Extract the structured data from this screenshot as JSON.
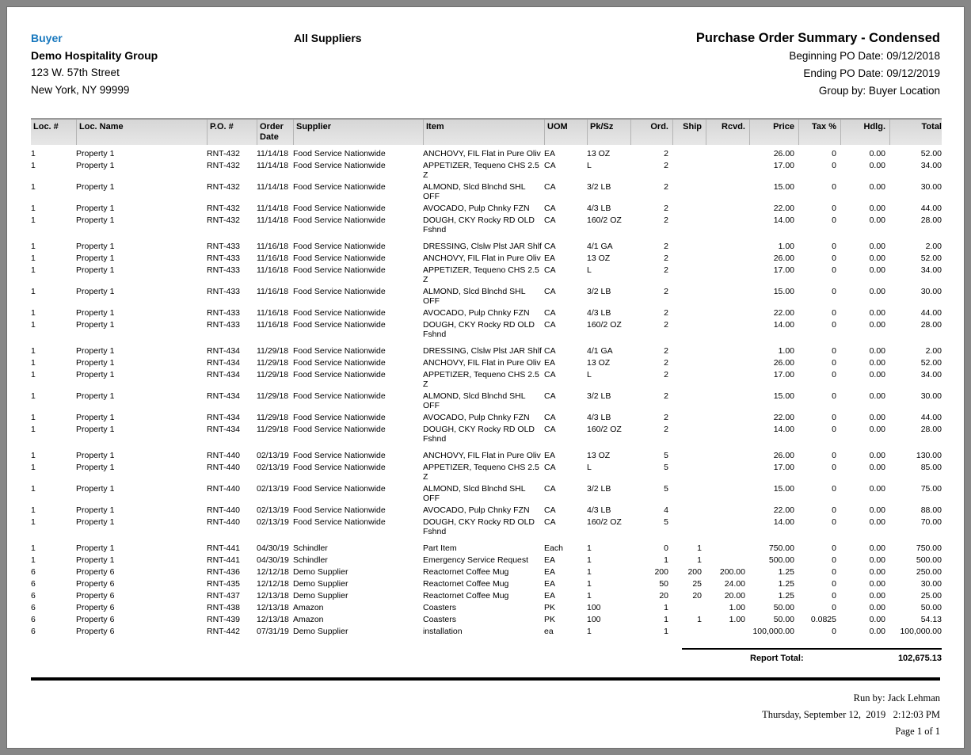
{
  "header": {
    "buyer_label": "Buyer",
    "buyer_name": "Demo Hospitality Group",
    "buyer_address1": "123 W. 57th Street",
    "buyer_address2": "New York, NY 99999",
    "supplier_filter": "All Suppliers",
    "report_title": "Purchase Order Summary - Condensed",
    "beginning_po_date": "Beginning PO Date: 09/12/2018",
    "ending_po_date": "Ending PO Date: 09/12/2019",
    "group_by": "Group by: Buyer Location"
  },
  "table": {
    "columns": [
      {
        "key": "loc_num",
        "label": "Loc. #"
      },
      {
        "key": "loc_name",
        "label": "Loc. Name"
      },
      {
        "key": "po_num",
        "label": "P.O. #"
      },
      {
        "key": "order_date",
        "label": "Order Date"
      },
      {
        "key": "supplier",
        "label": "Supplier"
      },
      {
        "key": "item",
        "label": "Item"
      },
      {
        "key": "uom",
        "label": "UOM"
      },
      {
        "key": "pk_sz",
        "label": "Pk/Sz"
      },
      {
        "key": "ord",
        "label": "Ord."
      },
      {
        "key": "ship",
        "label": "Ship"
      },
      {
        "key": "rcvd",
        "label": "Rcvd."
      },
      {
        "key": "price",
        "label": "Price"
      },
      {
        "key": "tax_pct",
        "label": "Tax %"
      },
      {
        "key": "hdlg",
        "label": "Hdlg."
      },
      {
        "key": "total",
        "label": "Total"
      }
    ],
    "groups": [
      {
        "rows": [
          [
            "1",
            "Property 1",
            "RNT-432",
            "11/14/18",
            "Food Service Nationwide",
            "ANCHOVY, FIL Flat in Pure Oliv",
            "EA",
            "13 OZ",
            "2",
            "",
            "",
            "26.00",
            "0",
            "0.00",
            "52.00"
          ],
          [
            "1",
            "Property 1",
            "RNT-432",
            "11/14/18",
            "Food Service Nationwide",
            "APPETIZER, Tequeno CHS 2.5 Z",
            "CA",
            "L",
            "2",
            "",
            "",
            "17.00",
            "0",
            "0.00",
            "34.00"
          ],
          [
            "1",
            "Property 1",
            "RNT-432",
            "11/14/18",
            "Food Service Nationwide",
            "ALMOND, Slcd Blnchd SHL OFF",
            "CA",
            "3/2 LB",
            "2",
            "",
            "",
            "15.00",
            "0",
            "0.00",
            "30.00"
          ],
          [
            "1",
            "Property 1",
            "RNT-432",
            "11/14/18",
            "Food Service Nationwide",
            "AVOCADO, Pulp Chnky FZN",
            "CA",
            "4/3 LB",
            "2",
            "",
            "",
            "22.00",
            "0",
            "0.00",
            "44.00"
          ],
          [
            "1",
            "Property 1",
            "RNT-432",
            "11/14/18",
            "Food Service Nationwide",
            "DOUGH, CKY Rocky RD OLD Fshnd",
            "CA",
            "160/2 OZ",
            "2",
            "",
            "",
            "14.00",
            "0",
            "0.00",
            "28.00"
          ]
        ]
      },
      {
        "rows": [
          [
            "1",
            "Property 1",
            "RNT-433",
            "11/16/18",
            "Food Service Nationwide",
            "DRESSING, Clslw Plst JAR Shlf",
            "CA",
            "4/1 GA",
            "2",
            "",
            "",
            "1.00",
            "0",
            "0.00",
            "2.00"
          ],
          [
            "1",
            "Property 1",
            "RNT-433",
            "11/16/18",
            "Food Service Nationwide",
            "ANCHOVY, FIL Flat in Pure Oliv",
            "EA",
            "13 OZ",
            "2",
            "",
            "",
            "26.00",
            "0",
            "0.00",
            "52.00"
          ],
          [
            "1",
            "Property 1",
            "RNT-433",
            "11/16/18",
            "Food Service Nationwide",
            "APPETIZER, Tequeno CHS 2.5 Z",
            "CA",
            "L",
            "2",
            "",
            "",
            "17.00",
            "0",
            "0.00",
            "34.00"
          ],
          [
            "1",
            "Property 1",
            "RNT-433",
            "11/16/18",
            "Food Service Nationwide",
            "ALMOND, Slcd Blnchd SHL OFF",
            "CA",
            "3/2 LB",
            "2",
            "",
            "",
            "15.00",
            "0",
            "0.00",
            "30.00"
          ],
          [
            "1",
            "Property 1",
            "RNT-433",
            "11/16/18",
            "Food Service Nationwide",
            "AVOCADO, Pulp Chnky FZN",
            "CA",
            "4/3 LB",
            "2",
            "",
            "",
            "22.00",
            "0",
            "0.00",
            "44.00"
          ],
          [
            "1",
            "Property 1",
            "RNT-433",
            "11/16/18",
            "Food Service Nationwide",
            "DOUGH, CKY Rocky RD OLD Fshnd",
            "CA",
            "160/2 OZ",
            "2",
            "",
            "",
            "14.00",
            "0",
            "0.00",
            "28.00"
          ]
        ]
      },
      {
        "rows": [
          [
            "1",
            "Property 1",
            "RNT-434",
            "11/29/18",
            "Food Service Nationwide",
            "DRESSING, Clslw Plst JAR Shlf",
            "CA",
            "4/1 GA",
            "2",
            "",
            "",
            "1.00",
            "0",
            "0.00",
            "2.00"
          ],
          [
            "1",
            "Property 1",
            "RNT-434",
            "11/29/18",
            "Food Service Nationwide",
            "ANCHOVY, FIL Flat in Pure Oliv",
            "EA",
            "13 OZ",
            "2",
            "",
            "",
            "26.00",
            "0",
            "0.00",
            "52.00"
          ],
          [
            "1",
            "Property 1",
            "RNT-434",
            "11/29/18",
            "Food Service Nationwide",
            "APPETIZER, Tequeno CHS 2.5 Z",
            "CA",
            "L",
            "2",
            "",
            "",
            "17.00",
            "0",
            "0.00",
            "34.00"
          ],
          [
            "1",
            "Property 1",
            "RNT-434",
            "11/29/18",
            "Food Service Nationwide",
            "ALMOND, Slcd Blnchd SHL OFF",
            "CA",
            "3/2 LB",
            "2",
            "",
            "",
            "15.00",
            "0",
            "0.00",
            "30.00"
          ],
          [
            "1",
            "Property 1",
            "RNT-434",
            "11/29/18",
            "Food Service Nationwide",
            "AVOCADO, Pulp Chnky FZN",
            "CA",
            "4/3 LB",
            "2",
            "",
            "",
            "22.00",
            "0",
            "0.00",
            "44.00"
          ],
          [
            "1",
            "Property 1",
            "RNT-434",
            "11/29/18",
            "Food Service Nationwide",
            "DOUGH, CKY Rocky RD OLD Fshnd",
            "CA",
            "160/2 OZ",
            "2",
            "",
            "",
            "14.00",
            "0",
            "0.00",
            "28.00"
          ]
        ]
      },
      {
        "rows": [
          [
            "1",
            "Property 1",
            "RNT-440",
            "02/13/19",
            "Food Service Nationwide",
            "ANCHOVY, FIL Flat in Pure Oliv",
            "EA",
            "13 OZ",
            "5",
            "",
            "",
            "26.00",
            "0",
            "0.00",
            "130.00"
          ],
          [
            "1",
            "Property 1",
            "RNT-440",
            "02/13/19",
            "Food Service Nationwide",
            "APPETIZER, Tequeno CHS 2.5 Z",
            "CA",
            "L",
            "5",
            "",
            "",
            "17.00",
            "0",
            "0.00",
            "85.00"
          ],
          [
            "1",
            "Property 1",
            "RNT-440",
            "02/13/19",
            "Food Service Nationwide",
            "ALMOND, Slcd Blnchd SHL OFF",
            "CA",
            "3/2 LB",
            "5",
            "",
            "",
            "15.00",
            "0",
            "0.00",
            "75.00"
          ],
          [
            "1",
            "Property 1",
            "RNT-440",
            "02/13/19",
            "Food Service Nationwide",
            "AVOCADO, Pulp Chnky FZN",
            "CA",
            "4/3 LB",
            "4",
            "",
            "",
            "22.00",
            "0",
            "0.00",
            "88.00"
          ],
          [
            "1",
            "Property 1",
            "RNT-440",
            "02/13/19",
            "Food Service Nationwide",
            "DOUGH, CKY Rocky RD OLD Fshnd",
            "CA",
            "160/2 OZ",
            "5",
            "",
            "",
            "14.00",
            "0",
            "0.00",
            "70.00"
          ]
        ]
      },
      {
        "rows": [
          [
            "1",
            "Property 1",
            "RNT-441",
            "04/30/19",
            "Schindler",
            "Part Item",
            "Each",
            "1",
            "0",
            "1",
            "",
            "750.00",
            "0",
            "0.00",
            "750.00"
          ],
          [
            "1",
            "Property 1",
            "RNT-441",
            "04/30/19",
            "Schindler",
            "Emergency Service Request",
            "EA",
            "1",
            "1",
            "1",
            "",
            "500.00",
            "0",
            "0.00",
            "500.00"
          ],
          [
            "6",
            "Property 6",
            "RNT-436",
            "12/12/18",
            "Demo Supplier",
            "Reactornet Coffee Mug",
            "EA",
            "1",
            "200",
            "200",
            "200.00",
            "1.25",
            "0",
            "0.00",
            "250.00"
          ],
          [
            "6",
            "Property 6",
            "RNT-435",
            "12/12/18",
            "Demo Supplier",
            "Reactornet Coffee Mug",
            "EA",
            "1",
            "50",
            "25",
            "24.00",
            "1.25",
            "0",
            "0.00",
            "30.00"
          ],
          [
            "6",
            "Property 6",
            "RNT-437",
            "12/13/18",
            "Demo Supplier",
            "Reactornet Coffee Mug",
            "EA",
            "1",
            "20",
            "20",
            "20.00",
            "1.25",
            "0",
            "0.00",
            "25.00"
          ],
          [
            "6",
            "Property 6",
            "RNT-438",
            "12/13/18",
            "Amazon",
            "Coasters",
            "PK",
            "100",
            "1",
            "",
            "1.00",
            "50.00",
            "0",
            "0.00",
            "50.00"
          ],
          [
            "6",
            "Property 6",
            "RNT-439",
            "12/13/18",
            "Amazon",
            "Coasters",
            "PK",
            "100",
            "1",
            "1",
            "1.00",
            "50.00",
            "0.0825",
            "0.00",
            "54.13"
          ],
          [
            "6",
            "Property 6",
            "RNT-442",
            "07/31/19",
            "Demo Supplier",
            "installation",
            "ea",
            "1",
            "1",
            "",
            "",
            "100,000.00",
            "0",
            "0.00",
            "100,000.00"
          ]
        ]
      }
    ],
    "report_total_label": "Report Total:",
    "report_total_value": "102,675.13"
  },
  "footer": {
    "run_by": "Run by: Jack Lehman",
    "datetime": "Thursday, September 12,  2019   2:12:03 PM",
    "page_num": "Page 1 of 1"
  }
}
